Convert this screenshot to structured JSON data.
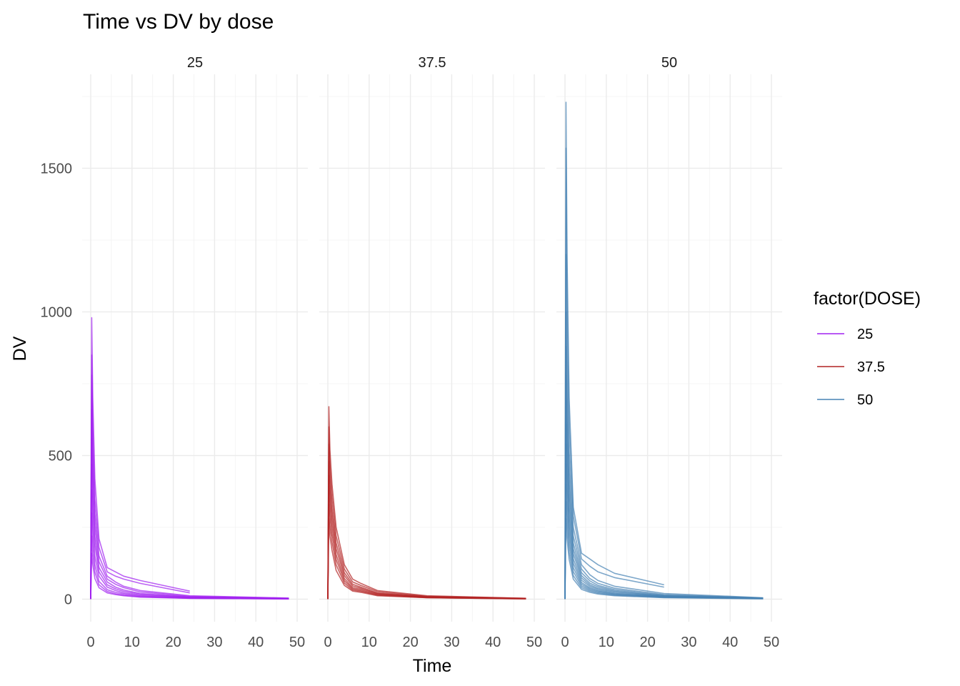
{
  "chart_data": {
    "type": "line",
    "title": "Time vs DV by dose",
    "xlabel": "Time",
    "ylabel": "DV",
    "xlim": [
      0,
      50
    ],
    "ylim": [
      0,
      1730
    ],
    "x_ticks": [
      0,
      10,
      20,
      30,
      40,
      50
    ],
    "y_ticks": [
      0,
      500,
      1000,
      1500
    ],
    "grid": true,
    "legend": {
      "title": "factor(DOSE)",
      "position": "right",
      "entries": [
        {
          "label": "25",
          "color": "#a020f0"
        },
        {
          "label": "37.5",
          "color": "#b22222"
        },
        {
          "label": "50",
          "color": "#4682b4"
        }
      ]
    },
    "facets": [
      {
        "label": "25",
        "color": "#a020f0",
        "series": [
          {
            "x": [
              0,
              0.25,
              0.5,
              1,
              2,
              4,
              6,
              8,
              12,
              24
            ],
            "y": [
              0,
              980,
              700,
              420,
              210,
              110,
              95,
              80,
              65,
              28
            ]
          },
          {
            "x": [
              0,
              0.25,
              0.5,
              1,
              2,
              4,
              6,
              8,
              12,
              24
            ],
            "y": [
              0,
              850,
              600,
              350,
              180,
              95,
              80,
              70,
              55,
              22
            ]
          },
          {
            "x": [
              0,
              0.25,
              0.5,
              1,
              2,
              4,
              6,
              8,
              12,
              24,
              48
            ],
            "y": [
              0,
              780,
              520,
              300,
              150,
              80,
              60,
              45,
              30,
              12,
              4
            ]
          },
          {
            "x": [
              0,
              0.25,
              0.5,
              1,
              2,
              4,
              6,
              8,
              12,
              24,
              48
            ],
            "y": [
              0,
              660,
              450,
              260,
              130,
              70,
              52,
              40,
              25,
              10,
              3
            ]
          },
          {
            "x": [
              0,
              0.25,
              0.5,
              1,
              2,
              4,
              6,
              8,
              12,
              24,
              48
            ],
            "y": [
              0,
              560,
              380,
              220,
              110,
              60,
              42,
              32,
              20,
              8,
              2
            ]
          },
          {
            "x": [
              0,
              0.25,
              0.5,
              1,
              2,
              4,
              6,
              8,
              12,
              24,
              48
            ],
            "y": [
              0,
              470,
              320,
              190,
              95,
              50,
              36,
              27,
              17,
              7,
              2
            ]
          },
          {
            "x": [
              0,
              0.25,
              0.5,
              1,
              2,
              4,
              6,
              8,
              12,
              24,
              48
            ],
            "y": [
              0,
              380,
              260,
              150,
              80,
              42,
              30,
              22,
              14,
              6,
              2
            ]
          },
          {
            "x": [
              0,
              0.25,
              0.5,
              1,
              2,
              4,
              6,
              8,
              12,
              24,
              48
            ],
            "y": [
              0,
              300,
              210,
              120,
              62,
              33,
              24,
              18,
              11,
              4,
              1
            ]
          },
          {
            "x": [
              0,
              0.25,
              0.5,
              1,
              2,
              4,
              6,
              8,
              12,
              24,
              48
            ],
            "y": [
              0,
              220,
              160,
              95,
              50,
              27,
              19,
              14,
              9,
              3,
              1
            ]
          },
          {
            "x": [
              0,
              0.25,
              0.5,
              1,
              2,
              4,
              6,
              8,
              12,
              24,
              48
            ],
            "y": [
              0,
              160,
              120,
              72,
              40,
              22,
              16,
              12,
              7,
              3,
              1
            ]
          }
        ]
      },
      {
        "label": "37.5",
        "color": "#b22222",
        "series": [
          {
            "x": [
              0,
              0.25,
              0.5,
              1,
              2,
              4,
              6,
              8,
              12,
              24,
              48
            ],
            "y": [
              0,
              670,
              520,
              400,
              250,
              120,
              70,
              55,
              30,
              12,
              3
            ]
          },
          {
            "x": [
              0,
              0.25,
              0.5,
              1,
              2,
              4,
              6,
              8,
              12,
              24,
              48
            ],
            "y": [
              0,
              600,
              470,
              360,
              220,
              105,
              60,
              48,
              26,
              10,
              3
            ]
          },
          {
            "x": [
              0,
              0.25,
              0.5,
              1,
              2,
              4,
              6,
              8,
              12,
              24,
              48
            ],
            "y": [
              0,
              540,
              420,
              320,
              195,
              92,
              52,
              42,
              22,
              9,
              2
            ]
          },
          {
            "x": [
              0,
              0.25,
              0.5,
              1,
              2,
              4,
              6,
              8,
              12,
              24,
              48
            ],
            "y": [
              0,
              480,
              380,
              290,
              175,
              82,
              46,
              38,
              20,
              8,
              2
            ]
          },
          {
            "x": [
              0,
              0.25,
              0.5,
              1,
              2,
              4,
              6,
              8,
              12,
              24,
              48
            ],
            "y": [
              0,
              430,
              340,
              260,
              155,
              72,
              40,
              34,
              18,
              7,
              2
            ]
          },
          {
            "x": [
              0,
              0.25,
              0.5,
              1,
              2,
              4,
              6,
              8,
              12,
              24,
              48
            ],
            "y": [
              0,
              380,
              300,
              230,
              138,
              64,
              36,
              30,
              16,
              6,
              2
            ]
          },
          {
            "x": [
              0,
              0.25,
              0.5,
              1,
              2,
              4,
              6,
              8,
              12,
              24,
              48
            ],
            "y": [
              0,
              330,
              260,
              200,
              120,
              56,
              32,
              27,
              14,
              5,
              1
            ]
          },
          {
            "x": [
              0,
              0.25,
              0.5,
              1,
              2,
              4,
              6,
              8,
              12,
              24,
              48
            ],
            "y": [
              0,
              280,
              220,
              170,
              100,
              48,
              28,
              24,
              12,
              5,
              1
            ]
          }
        ]
      },
      {
        "label": "50",
        "color": "#4682b4",
        "series": [
          {
            "x": [
              0,
              0.25,
              0.5,
              1,
              2,
              4,
              6,
              8,
              12,
              24
            ],
            "y": [
              0,
              1730,
              1200,
              700,
              320,
              160,
              140,
              120,
              90,
              50
            ]
          },
          {
            "x": [
              0,
              0.25,
              0.5,
              1,
              2,
              4,
              6,
              8,
              12,
              24
            ],
            "y": [
              0,
              1570,
              1050,
              620,
              290,
              140,
              115,
              95,
              75,
              42
            ]
          },
          {
            "x": [
              0,
              0.25,
              0.5,
              1,
              2,
              4,
              6,
              8,
              12,
              24,
              48
            ],
            "y": [
              0,
              1200,
              850,
              520,
              250,
              120,
              85,
              65,
              45,
              20,
              5
            ]
          },
          {
            "x": [
              0,
              0.25,
              0.5,
              1,
              2,
              4,
              6,
              8,
              12,
              24,
              48
            ],
            "y": [
              0,
              1000,
              720,
              450,
              220,
              105,
              72,
              55,
              38,
              16,
              4
            ]
          },
          {
            "x": [
              0,
              0.25,
              0.5,
              1,
              2,
              4,
              6,
              8,
              12,
              24,
              48
            ],
            "y": [
              0,
              880,
              640,
              400,
              195,
              92,
              64,
              48,
              33,
              14,
              4
            ]
          },
          {
            "x": [
              0,
              0.25,
              0.5,
              1,
              2,
              4,
              6,
              8,
              12,
              24,
              48
            ],
            "y": [
              0,
              780,
              570,
              360,
              175,
              82,
              56,
              43,
              29,
              12,
              3
            ]
          },
          {
            "x": [
              0,
              0.25,
              0.5,
              1,
              2,
              4,
              6,
              8,
              12,
              24,
              48
            ],
            "y": [
              0,
              690,
              510,
              320,
              158,
              74,
              50,
              38,
              26,
              11,
              3
            ]
          },
          {
            "x": [
              0,
              0.25,
              0.5,
              1,
              2,
              4,
              6,
              8,
              12,
              24,
              48
            ],
            "y": [
              0,
              610,
              450,
              285,
              140,
              66,
              45,
              34,
              23,
              10,
              3
            ]
          },
          {
            "x": [
              0,
              0.25,
              0.5,
              1,
              2,
              4,
              6,
              8,
              12,
              24,
              48
            ],
            "y": [
              0,
              540,
              400,
              255,
              125,
              58,
              40,
              30,
              20,
              9,
              2
            ]
          },
          {
            "x": [
              0,
              0.25,
              0.5,
              1,
              2,
              4,
              6,
              8,
              12,
              24,
              48
            ],
            "y": [
              0,
              470,
              350,
              225,
              110,
              52,
              36,
              27,
              18,
              8,
              2
            ]
          },
          {
            "x": [
              0,
              0.25,
              0.5,
              1,
              2,
              4,
              6,
              8,
              12,
              24,
              48
            ],
            "y": [
              0,
              400,
              300,
              195,
              96,
              46,
              32,
              24,
              16,
              7,
              2
            ]
          },
          {
            "x": [
              0,
              0.25,
              0.5,
              1,
              2,
              4,
              6,
              8,
              12,
              24,
              48
            ],
            "y": [
              0,
              340,
              255,
              165,
              82,
              40,
              28,
              21,
              14,
              6,
              2
            ]
          },
          {
            "x": [
              0,
              0.25,
              0.5,
              1,
              2,
              4,
              6,
              8,
              12,
              24,
              48
            ],
            "y": [
              0,
              280,
              210,
              138,
              70,
              34,
              24,
              18,
              12,
              5,
              1
            ]
          }
        ]
      }
    ]
  }
}
